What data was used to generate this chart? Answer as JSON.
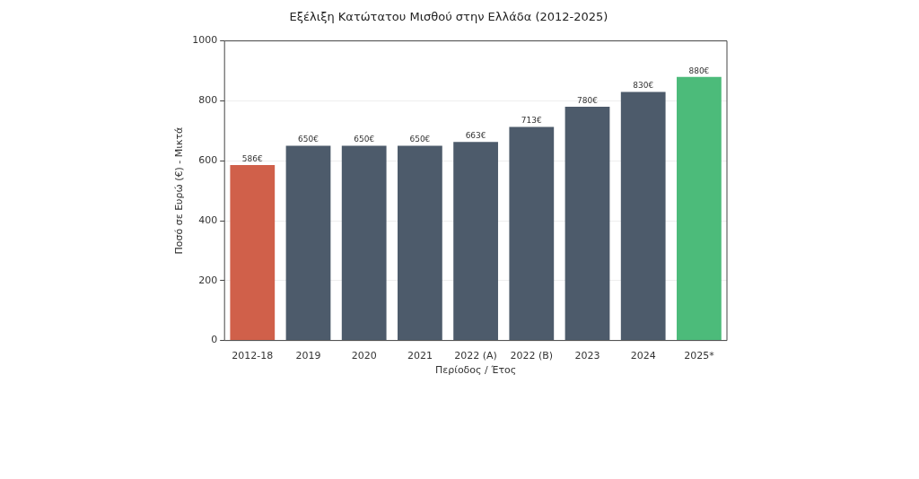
{
  "chart_data": {
    "type": "bar",
    "title": "Εξέλιξη Κατώτατου Μισθού στην Ελλάδα (2012-2025)",
    "xlabel": "Περίοδος / Έτος",
    "ylabel": "Ποσό σε Ευρώ (€) - Μικτά",
    "categories": [
      "2012-18",
      "2019",
      "2020",
      "2021",
      "2022 (Α)",
      "2022 (Β)",
      "2023",
      "2024",
      "2025*"
    ],
    "values": [
      586,
      650,
      650,
      650,
      663,
      713,
      780,
      830,
      880
    ],
    "colors": [
      "#d0604a",
      "#4d5b6b",
      "#4d5b6b",
      "#4d5b6b",
      "#4d5b6b",
      "#4d5b6b",
      "#4d5b6b",
      "#4d5b6b",
      "#4cbb7a"
    ],
    "value_labels": [
      "586€",
      "650€",
      "650€",
      "650€",
      "663€",
      "713€",
      "780€",
      "830€",
      "880€"
    ],
    "ylim": [
      0,
      1000
    ],
    "yticks": [
      0,
      200,
      400,
      600,
      800,
      1000
    ],
    "grid": "y"
  }
}
